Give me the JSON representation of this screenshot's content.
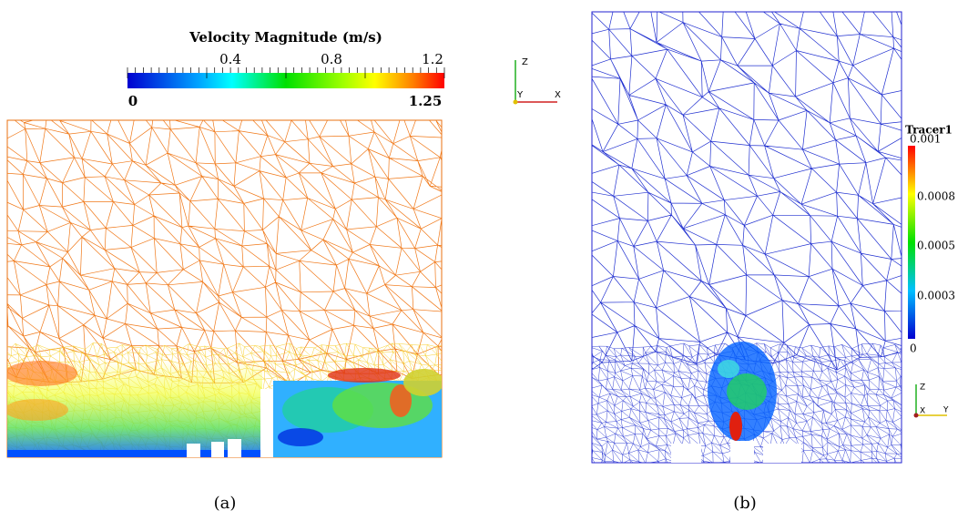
{
  "left_panel": {
    "colorbar": {
      "title": "Velocity Magnitude (m/s)",
      "top_ticks": [
        "0.4",
        "0.8",
        "1.2"
      ],
      "min_label": "0",
      "max_label": "1.25"
    },
    "axes": {
      "z": "Z",
      "y": "Y",
      "x": "X"
    },
    "caption": "(a)"
  },
  "right_panel": {
    "colorbar": {
      "title": "Tracer1",
      "ticks": [
        "0.001",
        "0.0008",
        "0.0005",
        "0.0003",
        "0"
      ]
    },
    "axes": {
      "z": "Z",
      "x": "X",
      "y": "Y"
    },
    "caption": "(b)"
  }
}
